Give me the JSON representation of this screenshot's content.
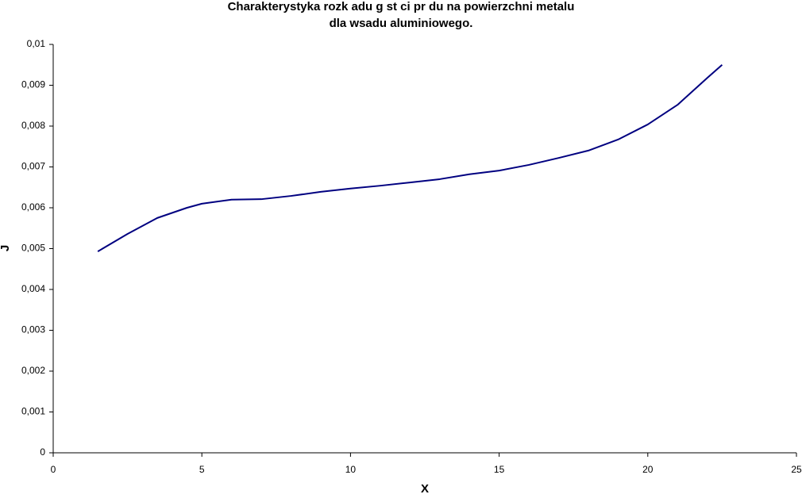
{
  "chart_data": {
    "type": "line",
    "title": [
      "Charakterystyka rozk adu g  st  ci pr  du na powierzchni metalu",
      "dla wsadu aluminiowego."
    ],
    "x_label": "X",
    "y_label": "J",
    "x": [
      1.5,
      2.5,
      3.5,
      4.5,
      5,
      6,
      7,
      8,
      9,
      10,
      11,
      12,
      13,
      14,
      15,
      16,
      17,
      18,
      19,
      20,
      21,
      22,
      22.5
    ],
    "series": [
      {
        "name": "J",
        "color": "#000080",
        "values": [
          0.00493,
          0.00536,
          0.00575,
          0.006,
          0.0061,
          0.0062,
          0.00621,
          0.00629,
          0.00639,
          0.00647,
          0.00654,
          0.00662,
          0.0067,
          0.00682,
          0.00691,
          0.00705,
          0.00722,
          0.0074,
          0.00767,
          0.00804,
          0.00852,
          0.00918,
          0.0095
        ]
      }
    ],
    "xlim": [
      0,
      25
    ],
    "xticks": [
      0,
      5,
      10,
      15,
      20,
      25
    ],
    "ylim": [
      0,
      0.01
    ],
    "yticks": [
      0,
      {
        "value": 0.001,
        "label": "0,001"
      },
      {
        "value": 0.002,
        "label": "0,002"
      },
      {
        "value": 0.003,
        "label": "0,003"
      },
      {
        "value": 0.004,
        "label": "0,004"
      },
      {
        "value": 0.005,
        "label": "0,005"
      },
      {
        "value": 0.006,
        "label": "0,006"
      },
      {
        "value": 0.007,
        "label": "0,007"
      },
      {
        "value": 0.008,
        "label": "0,008"
      },
      {
        "value": 0.009,
        "label": "0,009"
      },
      {
        "value": 0.01,
        "label": "0,01"
      }
    ],
    "grid": false
  }
}
